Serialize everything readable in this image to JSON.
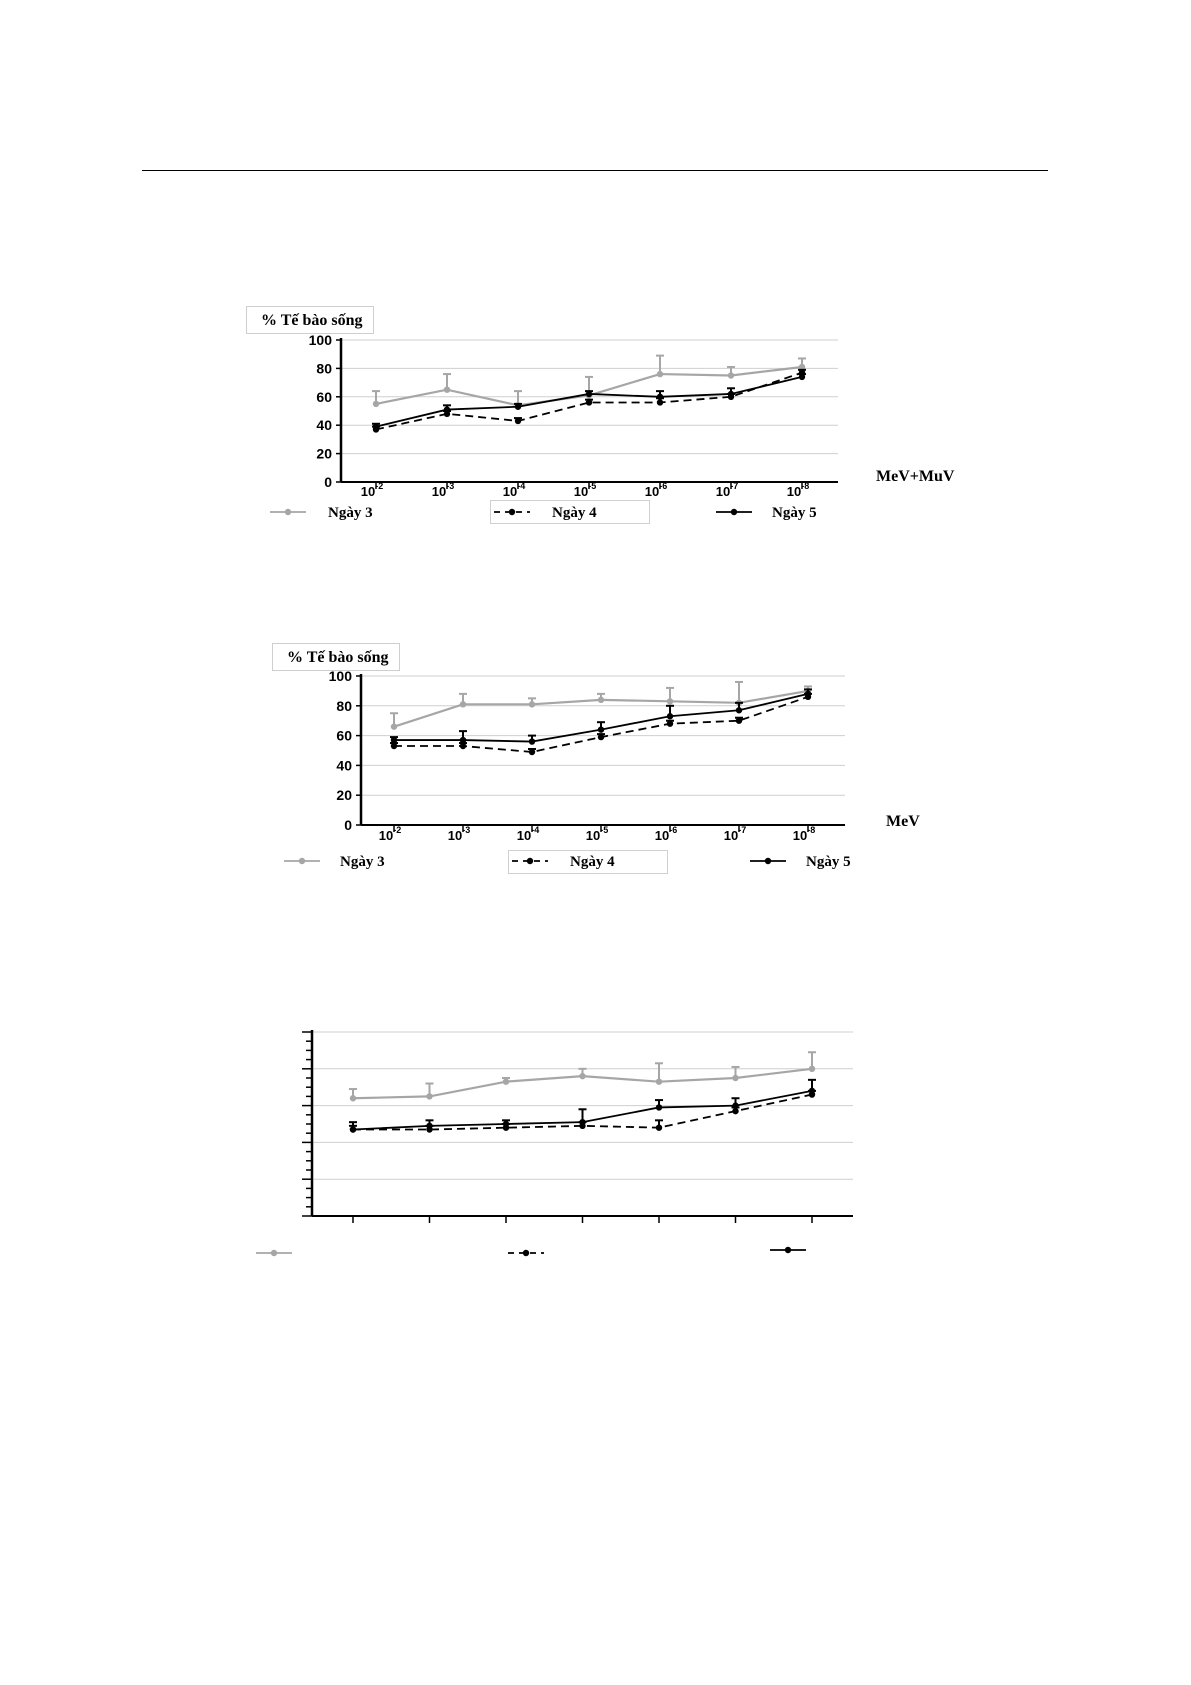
{
  "chart_data": [
    {
      "type": "line",
      "ylabel": "% Tế bào sống",
      "xlabel": "MeV+MuV",
      "ylim": [
        0,
        100
      ],
      "yticks": [
        "0",
        "20",
        "40",
        "60",
        "80",
        "100"
      ],
      "categories": [
        "-2",
        "-3",
        "-4",
        "-5",
        "-6",
        "-7",
        "-8"
      ],
      "tick_base": "10",
      "grid": true,
      "legend_position": "bottom",
      "series": [
        {
          "name": "Ngày 3",
          "color": "#a6a6a6",
          "dash": "solid",
          "values": [
            55,
            65,
            54,
            61,
            76,
            75,
            81
          ],
          "errors": [
            9,
            11,
            10,
            13,
            13,
            6,
            6
          ]
        },
        {
          "name": "Ngày 4",
          "color": "#000000",
          "dash": "dashed",
          "values": [
            37,
            48,
            43,
            56,
            56,
            60,
            77
          ],
          "errors": [
            2,
            2,
            2,
            2,
            3,
            2,
            2
          ]
        },
        {
          "name": "Ngày 5",
          "color": "#000000",
          "dash": "solid",
          "values": [
            39,
            51,
            53,
            62,
            60,
            62,
            74
          ],
          "errors": [
            2,
            3,
            2,
            2,
            4,
            4,
            2
          ]
        }
      ]
    },
    {
      "type": "line",
      "ylabel": "% Tế bào sống",
      "xlabel": "MeV",
      "ylim": [
        0,
        100
      ],
      "yticks": [
        "0",
        "20",
        "40",
        "60",
        "80",
        "100"
      ],
      "categories": [
        "-2",
        "-3",
        "-4",
        "-5",
        "-6",
        "-7",
        "-8"
      ],
      "tick_base": "10",
      "grid": true,
      "legend_position": "bottom",
      "series": [
        {
          "name": "Ngày 3",
          "color": "#a6a6a6",
          "dash": "solid",
          "values": [
            66,
            81,
            81,
            84,
            83,
            82,
            90
          ],
          "errors": [
            9,
            7,
            4,
            4,
            9,
            14,
            3
          ]
        },
        {
          "name": "Ngày 4",
          "color": "#000000",
          "dash": "dashed",
          "values": [
            53,
            53,
            49,
            59,
            68,
            70,
            86
          ],
          "errors": [
            2,
            2,
            2,
            2,
            2,
            2,
            2
          ]
        },
        {
          "name": "Ngày 5",
          "color": "#000000",
          "dash": "solid",
          "values": [
            57,
            57,
            56,
            64,
            73,
            77,
            88
          ],
          "errors": [
            2,
            6,
            4,
            5,
            7,
            5,
            3
          ]
        }
      ]
    },
    {
      "type": "line",
      "ylabel": "",
      "xlabel": "",
      "ylim": [
        0,
        100
      ],
      "yticks": [],
      "categories": [
        "",
        "",
        "",
        "",
        "",
        "",
        ""
      ],
      "tick_base": "",
      "grid": true,
      "legend_position": "bottom",
      "series": [
        {
          "color": "#a6a6a6",
          "dash": "solid",
          "values": [
            64,
            65,
            73,
            76,
            73,
            75,
            80
          ],
          "errors": [
            5,
            7,
            2,
            4,
            10,
            6,
            9
          ]
        },
        {
          "color": "#000000",
          "dash": "dashed",
          "values": [
            47,
            47,
            48,
            49,
            48,
            57,
            66
          ],
          "errors": [
            2,
            2,
            2,
            2,
            4,
            2,
            2
          ]
        },
        {
          "color": "#000000",
          "dash": "solid",
          "values": [
            47,
            49,
            50,
            51,
            59,
            60,
            68
          ],
          "errors": [
            4,
            3,
            2,
            7,
            4,
            4,
            6
          ]
        }
      ]
    }
  ]
}
